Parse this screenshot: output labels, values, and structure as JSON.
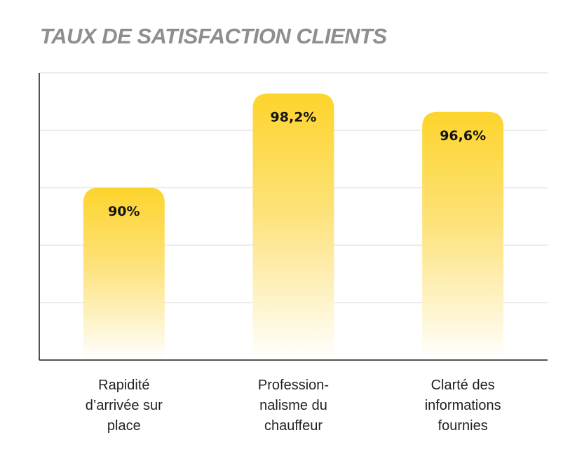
{
  "chart_data": {
    "type": "bar",
    "title": "TAUX DE SATISFACTION CLIENTS",
    "categories": [
      [
        "Rapidité",
        "d’arrivée sur",
        "place"
      ],
      [
        "Profession-",
        "nalisme du",
        "chauffeur"
      ],
      [
        "Clarté des",
        "informations",
        "fournies"
      ]
    ],
    "values": [
      90,
      98.2,
      96.6
    ],
    "value_labels": [
      "90%",
      "98,2%",
      "96,6%"
    ],
    "ylim": [
      75,
      100
    ],
    "grid": true,
    "colors": {
      "bar_top": "#fdd42c",
      "bar_bottom": "#ffffff"
    }
  }
}
